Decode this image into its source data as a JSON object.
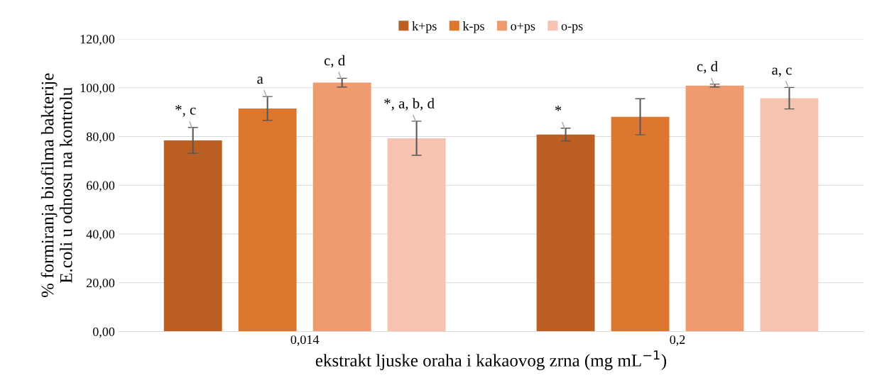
{
  "chart_data": {
    "type": "bar",
    "xlabel": "ekstrakt ljuske oraha i kakaovog zrna (mg mL$^{−1}$)",
    "ylabel": "% formiranja biofilma bakterije\nE.coli u odnosu na kontrolu",
    "categories": [
      "0,014",
      "0,2"
    ],
    "series": [
      {
        "name": "k+ps",
        "color": "#bb5f22",
        "values": [
          78.4,
          80.8
        ],
        "errors": [
          5.3,
          2.6
        ],
        "value_labels": [
          "*, c",
          "*"
        ]
      },
      {
        "name": "k-ps",
        "color": "#dd762e",
        "values": [
          91.5,
          88.1
        ],
        "errors": [
          4.9,
          7.4
        ],
        "value_labels": [
          "a",
          null
        ]
      },
      {
        "name": "o+ps",
        "color": "#f09a6f",
        "values": [
          102.1,
          100.9
        ],
        "errors": [
          1.8,
          0.6
        ],
        "value_labels": [
          "c, d",
          "c, d"
        ]
      },
      {
        "name": "o-ps",
        "color": "#f5c3b0",
        "values": [
          79.3,
          95.7
        ],
        "errors": [
          7.0,
          4.4
        ],
        "value_labels": [
          "*, a, b, d",
          "a, c"
        ]
      }
    ],
    "ylim": [
      0,
      120
    ],
    "yticks": [
      {
        "value": 0,
        "label": "0,00"
      },
      {
        "value": 20,
        "label": "20,00"
      },
      {
        "value": 40,
        "label": "40,00"
      },
      {
        "value": 60,
        "label": "60,00"
      },
      {
        "value": 80,
        "label": "80,00"
      },
      {
        "value": 100,
        "label": "100,00"
      },
      {
        "value": 120,
        "label": "120,00"
      }
    ],
    "grid": "y",
    "legend": "top"
  }
}
